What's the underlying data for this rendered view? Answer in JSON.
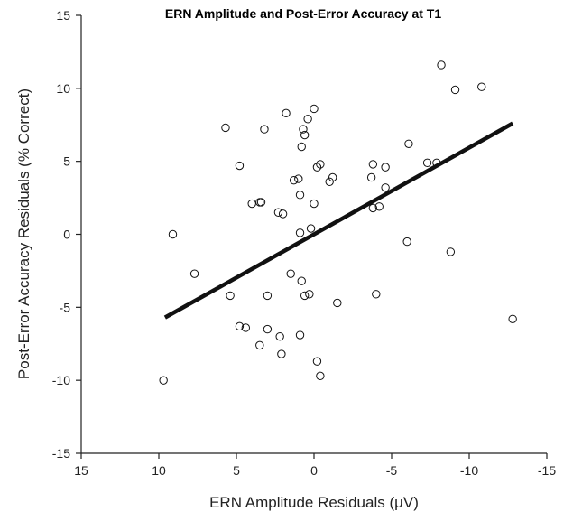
{
  "chart_data": {
    "type": "scatter",
    "title": "ERN Amplitude and Post-Error Accuracy at T1",
    "xlabel": "ERN Amplitude Residuals (μV)",
    "ylabel": "Post-Error Accuracy Residuals (% Correct)",
    "xlim": [
      15,
      -15
    ],
    "ylim": [
      -15,
      15
    ],
    "x_reversed": true,
    "xticks": [
      15,
      10,
      5,
      0,
      -5,
      -10,
      -15
    ],
    "yticks": [
      15,
      10,
      5,
      0,
      -5,
      -10,
      -15
    ],
    "grid": false,
    "points": [
      {
        "x": 9.7,
        "y": -10.0
      },
      {
        "x": 9.1,
        "y": 0.0
      },
      {
        "x": 7.7,
        "y": -2.7
      },
      {
        "x": 5.7,
        "y": 7.3
      },
      {
        "x": 5.4,
        "y": -4.2
      },
      {
        "x": 4.8,
        "y": 4.7
      },
      {
        "x": 4.8,
        "y": -6.3
      },
      {
        "x": 4.4,
        "y": -6.4
      },
      {
        "x": 4.0,
        "y": 2.1
      },
      {
        "x": 3.5,
        "y": -7.6
      },
      {
        "x": 3.5,
        "y": 2.2
      },
      {
        "x": 3.4,
        "y": 2.2
      },
      {
        "x": 3.2,
        "y": 7.2
      },
      {
        "x": 3.0,
        "y": -4.2
      },
      {
        "x": 3.0,
        "y": -6.5
      },
      {
        "x": 2.3,
        "y": 1.5
      },
      {
        "x": 2.2,
        "y": -7.0
      },
      {
        "x": 2.1,
        "y": -8.2
      },
      {
        "x": 2.0,
        "y": 1.4
      },
      {
        "x": 1.8,
        "y": 8.3
      },
      {
        "x": 1.5,
        "y": -2.7
      },
      {
        "x": 1.3,
        "y": 3.7
      },
      {
        "x": 1.0,
        "y": 3.8
      },
      {
        "x": 0.9,
        "y": 2.7
      },
      {
        "x": 0.9,
        "y": 0.1
      },
      {
        "x": 0.9,
        "y": -6.9
      },
      {
        "x": 0.8,
        "y": 6.0
      },
      {
        "x": 0.8,
        "y": -3.2
      },
      {
        "x": 0.7,
        "y": 7.2
      },
      {
        "x": 0.6,
        "y": 6.8
      },
      {
        "x": 0.6,
        "y": -4.2
      },
      {
        "x": 0.4,
        "y": 7.9
      },
      {
        "x": 0.3,
        "y": -4.1
      },
      {
        "x": 0.2,
        "y": 0.4
      },
      {
        "x": 0.0,
        "y": 2.1
      },
      {
        "x": 0.0,
        "y": 8.6
      },
      {
        "x": -0.2,
        "y": 4.6
      },
      {
        "x": -0.2,
        "y": -8.7
      },
      {
        "x": -0.4,
        "y": 4.8
      },
      {
        "x": -0.4,
        "y": -9.7
      },
      {
        "x": -1.0,
        "y": 3.6
      },
      {
        "x": -1.2,
        "y": 3.9
      },
      {
        "x": -1.5,
        "y": -4.7
      },
      {
        "x": -3.7,
        "y": 3.9
      },
      {
        "x": -3.8,
        "y": 4.8
      },
      {
        "x": -3.8,
        "y": 1.8
      },
      {
        "x": -4.0,
        "y": -4.1
      },
      {
        "x": -4.2,
        "y": 1.9
      },
      {
        "x": -4.6,
        "y": 4.6
      },
      {
        "x": -4.6,
        "y": 3.2
      },
      {
        "x": -6.0,
        "y": -0.5
      },
      {
        "x": -6.1,
        "y": 6.2
      },
      {
        "x": -7.3,
        "y": 4.9
      },
      {
        "x": -7.9,
        "y": 4.9
      },
      {
        "x": -8.2,
        "y": 11.6
      },
      {
        "x": -8.8,
        "y": -1.2
      },
      {
        "x": -9.1,
        "y": 9.9
      },
      {
        "x": -10.8,
        "y": 10.1
      },
      {
        "x": -12.8,
        "y": -5.8
      }
    ],
    "regression_line": {
      "x": [
        9.6,
        -12.8
      ],
      "y": [
        -5.7,
        7.6
      ]
    }
  }
}
